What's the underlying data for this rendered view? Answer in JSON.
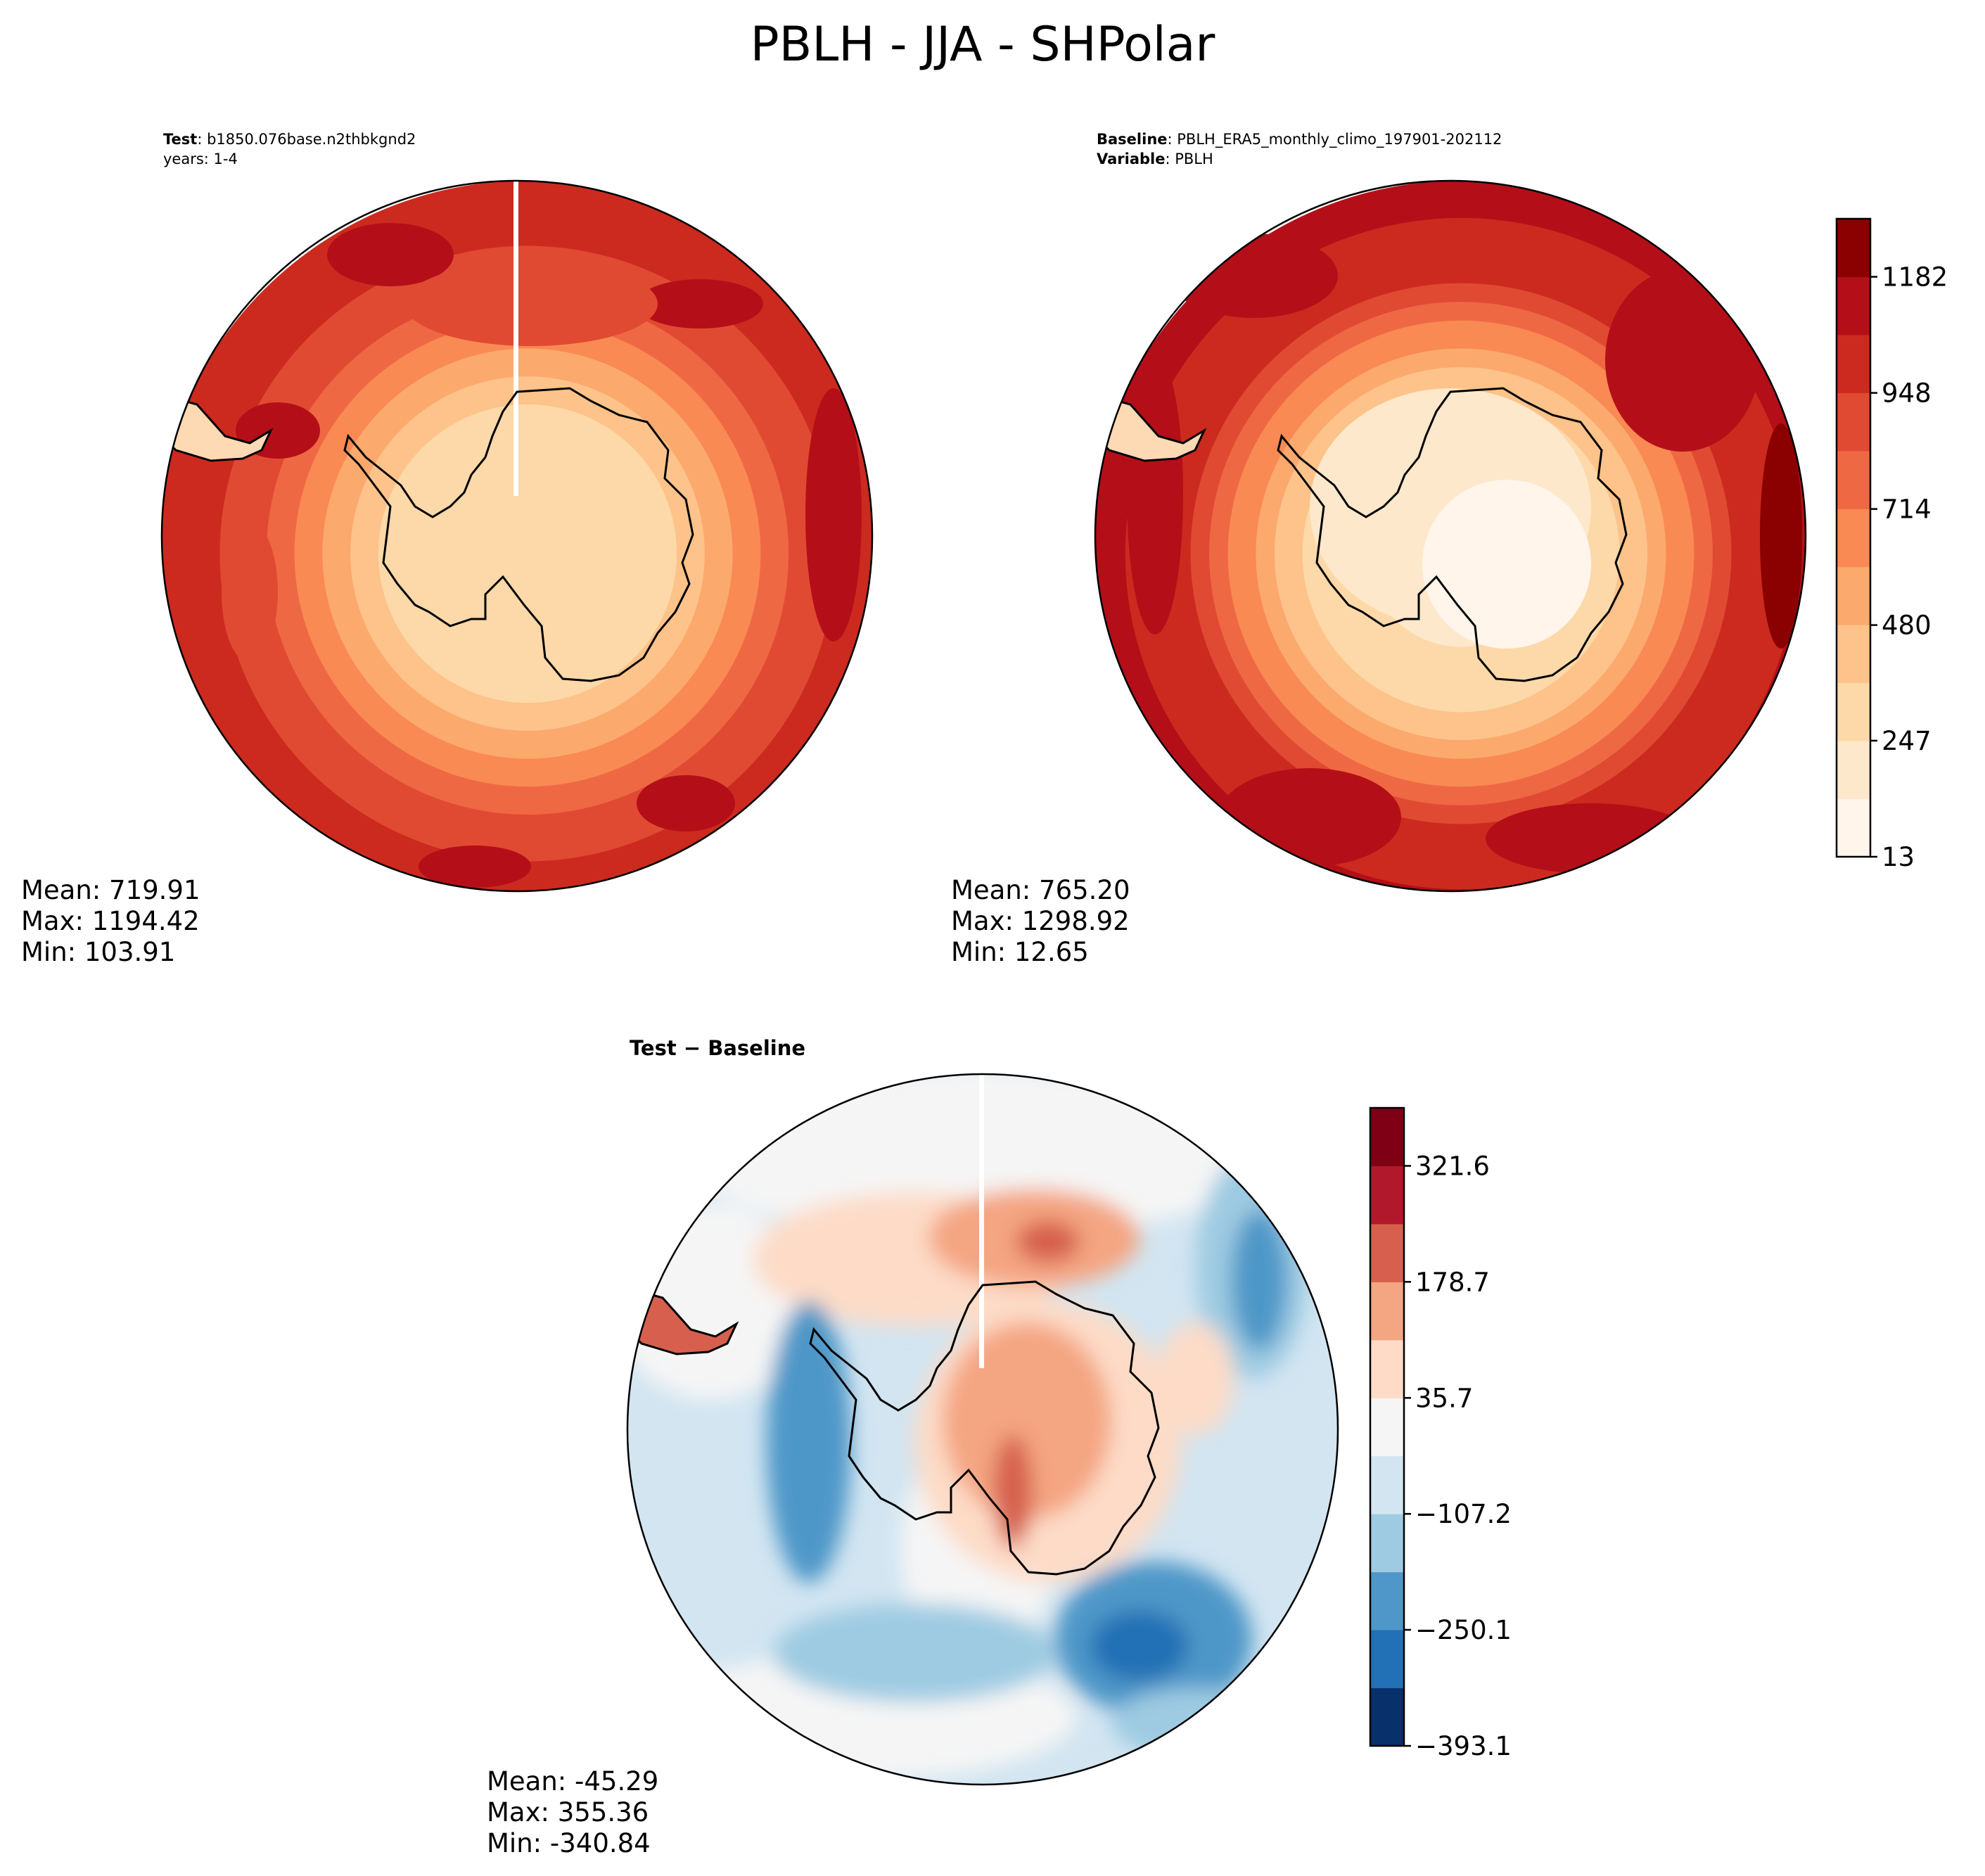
{
  "chart_data": {
    "title": "PBLH - JJA - SHPolar",
    "type": "heatmap",
    "panels": [
      {
        "id": "test",
        "meta": [
          {
            "key": "Test",
            "value": ": b1850.076base.n2thbkgnd2"
          },
          {
            "key": "",
            "value": "years: 1-4"
          }
        ],
        "stats": {
          "mean": "Mean: 719.91",
          "max": "Max: 1194.42",
          "min": "Min: 103.91"
        },
        "profile": {
          "pole": 250,
          "coast": 330,
          "mid": 900,
          "outer": 1050
        }
      },
      {
        "id": "baseline",
        "meta": [
          {
            "key": "Baseline",
            "value": ": PBLH_ERA5_monthly_climo_197901-202112"
          },
          {
            "key": "Variable",
            "value": ": PBLH"
          }
        ],
        "stats": {
          "mean": "Mean: 765.20",
          "max": "Max: 1298.92",
          "min": "Min: 12.65"
        },
        "profile": {
          "pole": 180,
          "coast": 280,
          "mid": 950,
          "outer": 1120
        }
      },
      {
        "id": "diff",
        "title": "Test − Baseline",
        "stats": {
          "mean": "Mean: -45.29",
          "max": "Max: 355.36",
          "min": "Min: -340.84"
        }
      }
    ],
    "colorbars": [
      {
        "id": "main",
        "range": [
          13,
          1299
        ],
        "ticks": [
          13,
          247,
          480,
          714,
          948,
          1182
        ],
        "tick_labels": [
          "13",
          "247",
          "480",
          "714",
          "948",
          "1182"
        ],
        "levels": 11,
        "colors": [
          "#fff5eb",
          "#fee8cb",
          "#fdd9a9",
          "#fdc38a",
          "#fca96e",
          "#f98a53",
          "#ef6844",
          "#e04a32",
          "#cc2a1f",
          "#b40f18",
          "#8b0000"
        ]
      },
      {
        "id": "diff",
        "range": [
          -393.1,
          393.1
        ],
        "ticks": [
          -393.1,
          -250.1,
          -107.2,
          35.7,
          178.7,
          321.6
        ],
        "tick_labels": [
          "−393.1",
          "−250.1",
          "−107.2",
          "35.7",
          "178.7",
          "321.6"
        ],
        "levels": 11,
        "colors": [
          "#08306b",
          "#2270b5",
          "#4e97c8",
          "#9ecbe2",
          "#d2e5f1",
          "#f5f5f5",
          "#fddbc7",
          "#f4a582",
          "#d6604d",
          "#b2182b",
          "#7f0015"
        ]
      }
    ]
  }
}
